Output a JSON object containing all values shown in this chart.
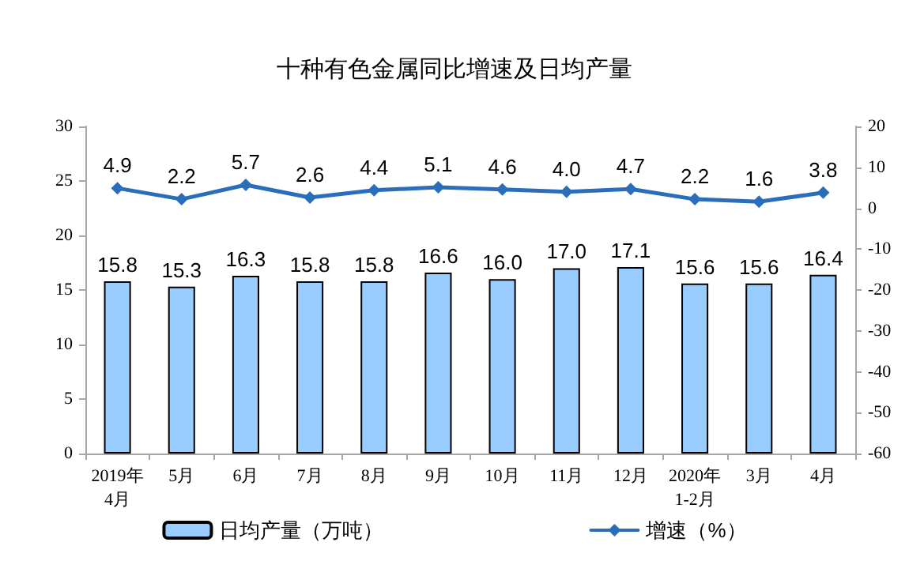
{
  "chart_data": {
    "type": "bar",
    "title": "十种有色金属同比增速及日均产量",
    "categories": [
      "2019年\n4月",
      "5月",
      "6月",
      "7月",
      "8月",
      "9月",
      "10月",
      "11月",
      "12月",
      "2020年\n1-2月",
      "3月",
      "4月"
    ],
    "series": [
      {
        "name": "日均产量（万吨）",
        "color": "#99ccff",
        "values": [
          15.8,
          15.3,
          16.3,
          15.8,
          15.8,
          16.6,
          16.0,
          17.0,
          17.1,
          15.6,
          15.6,
          16.4
        ],
        "value_labels": [
          "15.8",
          "15.3",
          "16.3",
          "15.8",
          "15.8",
          "16.6",
          "16.0",
          "17.0",
          "17.1",
          "15.6",
          "15.6",
          "16.4"
        ]
      },
      {
        "name": "增速（%）",
        "type": "line",
        "axis": "y2",
        "color": "#2a6ebb",
        "values": [
          4.9,
          2.2,
          5.7,
          2.6,
          4.4,
          5.1,
          4.6,
          4.0,
          4.7,
          2.2,
          1.6,
          3.8
        ],
        "value_labels": [
          "4.9",
          "2.2",
          "5.7",
          "2.6",
          "4.4",
          "5.1",
          "4.6",
          "4.0",
          "4.7",
          "2.2",
          "1.6",
          "3.8"
        ]
      }
    ],
    "ylim": [
      0,
      30
    ],
    "yticks": [
      0,
      5,
      10,
      15,
      20,
      25,
      30
    ],
    "y2lim": [
      -60,
      20
    ],
    "y2ticks": [
      -60,
      -50,
      -40,
      -30,
      -20,
      -10,
      0,
      10,
      20
    ],
    "grid": false,
    "legend": "bottom",
    "marker": "diamond",
    "line_style": "solid"
  }
}
